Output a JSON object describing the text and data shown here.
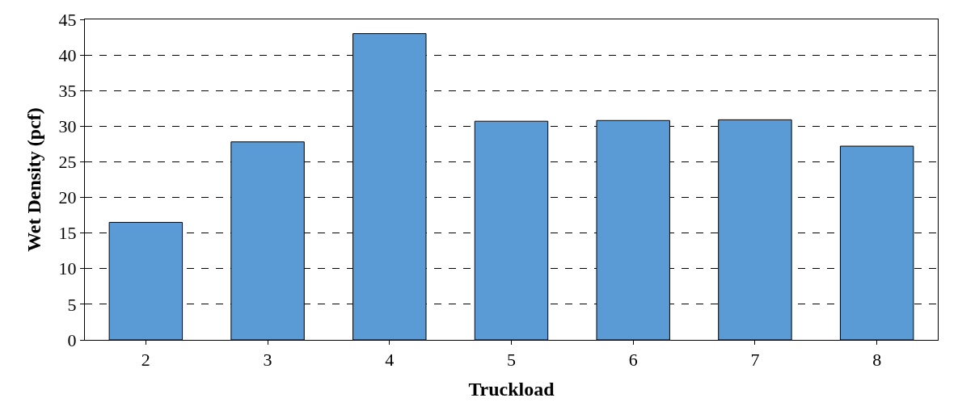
{
  "chart_data": {
    "type": "bar",
    "xlabel": "Truckload",
    "ylabel": "Wet Density (pcf)",
    "categories": [
      "2",
      "3",
      "4",
      "5",
      "6",
      "7",
      "8"
    ],
    "values": [
      16.5,
      27.8,
      43.0,
      30.7,
      30.8,
      30.9,
      27.2
    ],
    "color": "#5b9bd5",
    "ylim": [
      0,
      45
    ],
    "yticks": [
      0,
      5,
      10,
      15,
      20,
      25,
      30,
      35,
      40,
      45
    ],
    "grid": "y",
    "line_style": "dashed"
  }
}
